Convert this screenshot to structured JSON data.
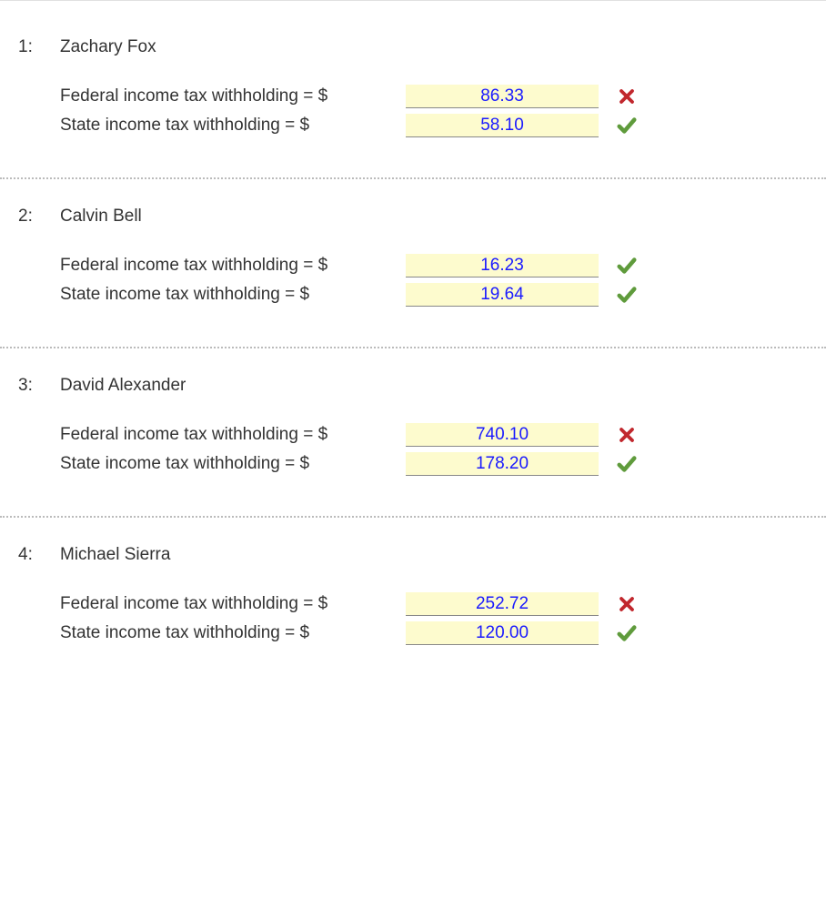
{
  "colors": {
    "input_bg": "#fdfbce",
    "input_text": "#1a1aff",
    "check": "#5f9b3c",
    "cross": "#c1272d",
    "label_text": "#333333",
    "divider": "#bbbbbb"
  },
  "field_labels": {
    "federal": "Federal income tax withholding = $",
    "state": "State income tax withholding = $"
  },
  "entries": [
    {
      "num": "1:",
      "name": "Zachary Fox",
      "federal": {
        "value": "86.33",
        "status": "incorrect"
      },
      "state": {
        "value": "58.10",
        "status": "correct"
      }
    },
    {
      "num": "2:",
      "name": "Calvin Bell",
      "federal": {
        "value": "16.23",
        "status": "correct"
      },
      "state": {
        "value": "19.64",
        "status": "correct"
      }
    },
    {
      "num": "3:",
      "name": "David Alexander",
      "federal": {
        "value": "740.10",
        "status": "incorrect"
      },
      "state": {
        "value": "178.20",
        "status": "correct"
      }
    },
    {
      "num": "4:",
      "name": "Michael Sierra",
      "federal": {
        "value": "252.72",
        "status": "incorrect"
      },
      "state": {
        "value": "120.00",
        "status": "correct"
      }
    }
  ]
}
